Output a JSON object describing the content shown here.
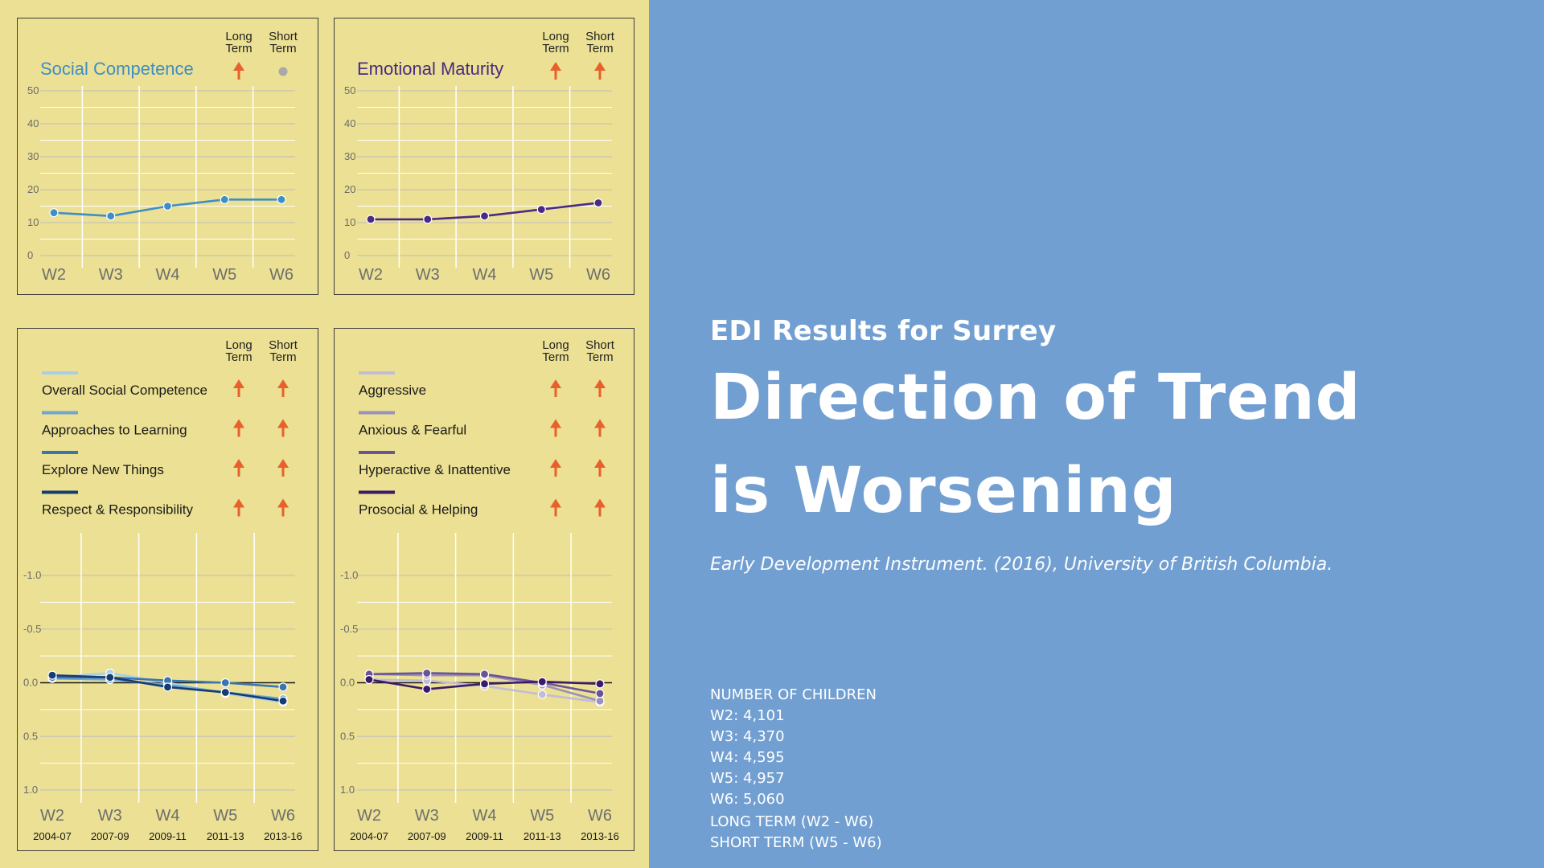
{
  "header": {
    "subtitle": "EDI Results for Surrey",
    "title_line1": "Direction of Trend",
    "title_line2": "is Worsening",
    "source": "Early Development Instrument. (2016), University of British Columbia."
  },
  "info": {
    "heading": "NUMBER OF CHILDREN",
    "counts": [
      "W2: 4,101",
      "W3: 4,370",
      "W4: 4,595",
      "W5: 4,957",
      "W6: 5,060"
    ],
    "long_term": "LONG TERM (W2 - W6)",
    "short_term": "SHORT TERM (W5 - W6)"
  },
  "legend_headers": {
    "long": [
      "Long",
      "Term"
    ],
    "short": [
      "Short",
      "Term"
    ]
  },
  "colors": {
    "arrow": "#e8612c",
    "neutral_dot": "#a8a8a8",
    "background_left": "#ebe093",
    "background_right": "#729fd1"
  },
  "chart_data": [
    {
      "type": "line",
      "title": "Social Competence",
      "title_color": "#3f8ec6",
      "categories": [
        "W2",
        "W3",
        "W4",
        "W5",
        "W6"
      ],
      "yticks": [
        "50",
        "40",
        "30",
        "20",
        "10",
        "0"
      ],
      "ylim": [
        0,
        50
      ],
      "trend": {
        "long": "up",
        "short": "neutral"
      },
      "series": [
        {
          "name": "Social Competence",
          "color": "#3f8ec6",
          "values": [
            13,
            12,
            15,
            17,
            17
          ]
        }
      ]
    },
    {
      "type": "line",
      "title": "Emotional Maturity",
      "title_color": "#4a2a82",
      "categories": [
        "W2",
        "W3",
        "W4",
        "W5",
        "W6"
      ],
      "yticks": [
        "50",
        "40",
        "30",
        "20",
        "10",
        "0"
      ],
      "ylim": [
        0,
        50
      ],
      "trend": {
        "long": "up",
        "short": "up"
      },
      "series": [
        {
          "name": "Emotional Maturity",
          "color": "#4a2a82",
          "values": [
            11,
            11,
            12,
            14,
            16
          ]
        }
      ]
    },
    {
      "type": "line",
      "categories": [
        "W2",
        "W3",
        "W4",
        "W5",
        "W6"
      ],
      "periods": [
        "2004-07",
        "2007-09",
        "2009-11",
        "2011-13",
        "2013-16"
      ],
      "yticks": [
        "-1.0",
        "-0.5",
        "0.0",
        "0.5",
        "1.0"
      ],
      "ylim": [
        -1.0,
        1.0
      ],
      "y_inverted": true,
      "series": [
        {
          "name": "Overall Social Competence",
          "color": "#a9cfe6",
          "trend": {
            "long": "up",
            "short": "up"
          },
          "values": [
            -0.05,
            -0.09,
            0.0,
            0.1,
            0.18
          ]
        },
        {
          "name": "Approaches to Learning",
          "color": "#6fa6cf",
          "trend": {
            "long": "up",
            "short": "up"
          },
          "values": [
            -0.04,
            -0.03,
            0.02,
            0.09,
            0.15
          ]
        },
        {
          "name": "Explore New Things",
          "color": "#3a76ad",
          "trend": {
            "long": "up",
            "short": "up"
          },
          "values": [
            -0.05,
            -0.05,
            -0.02,
            0.0,
            0.04
          ]
        },
        {
          "name": "Respect & Responsibility",
          "color": "#163c75",
          "trend": {
            "long": "up",
            "short": "up"
          },
          "values": [
            -0.07,
            -0.05,
            0.04,
            0.09,
            0.17
          ]
        }
      ]
    },
    {
      "type": "line",
      "categories": [
        "W2",
        "W3",
        "W4",
        "W5",
        "W6"
      ],
      "periods": [
        "2004-07",
        "2007-09",
        "2009-11",
        "2011-13",
        "2013-16"
      ],
      "yticks": [
        "-1.0",
        "-0.5",
        "0.0",
        "0.5",
        "1.0"
      ],
      "ylim": [
        -1.0,
        1.0
      ],
      "y_inverted": true,
      "series": [
        {
          "name": "Aggressive",
          "color": "#c1bcd9",
          "trend": {
            "long": "up",
            "short": "up"
          },
          "values": [
            -0.03,
            -0.02,
            0.03,
            0.11,
            0.18
          ]
        },
        {
          "name": "Anxious & Fearful",
          "color": "#9a90bc",
          "trend": {
            "long": "up",
            "short": "up"
          },
          "values": [
            -0.08,
            -0.07,
            -0.07,
            0.02,
            0.17
          ]
        },
        {
          "name": "Hyperactive & Inattentive",
          "color": "#6a5499",
          "trend": {
            "long": "up",
            "short": "up"
          },
          "values": [
            -0.08,
            -0.09,
            -0.08,
            0.0,
            0.1
          ]
        },
        {
          "name": "Prosocial & Helping",
          "color": "#3b1a6a",
          "trend": {
            "long": "up",
            "short": "up"
          },
          "values": [
            -0.03,
            0.06,
            0.01,
            -0.01,
            0.01
          ]
        }
      ]
    }
  ]
}
